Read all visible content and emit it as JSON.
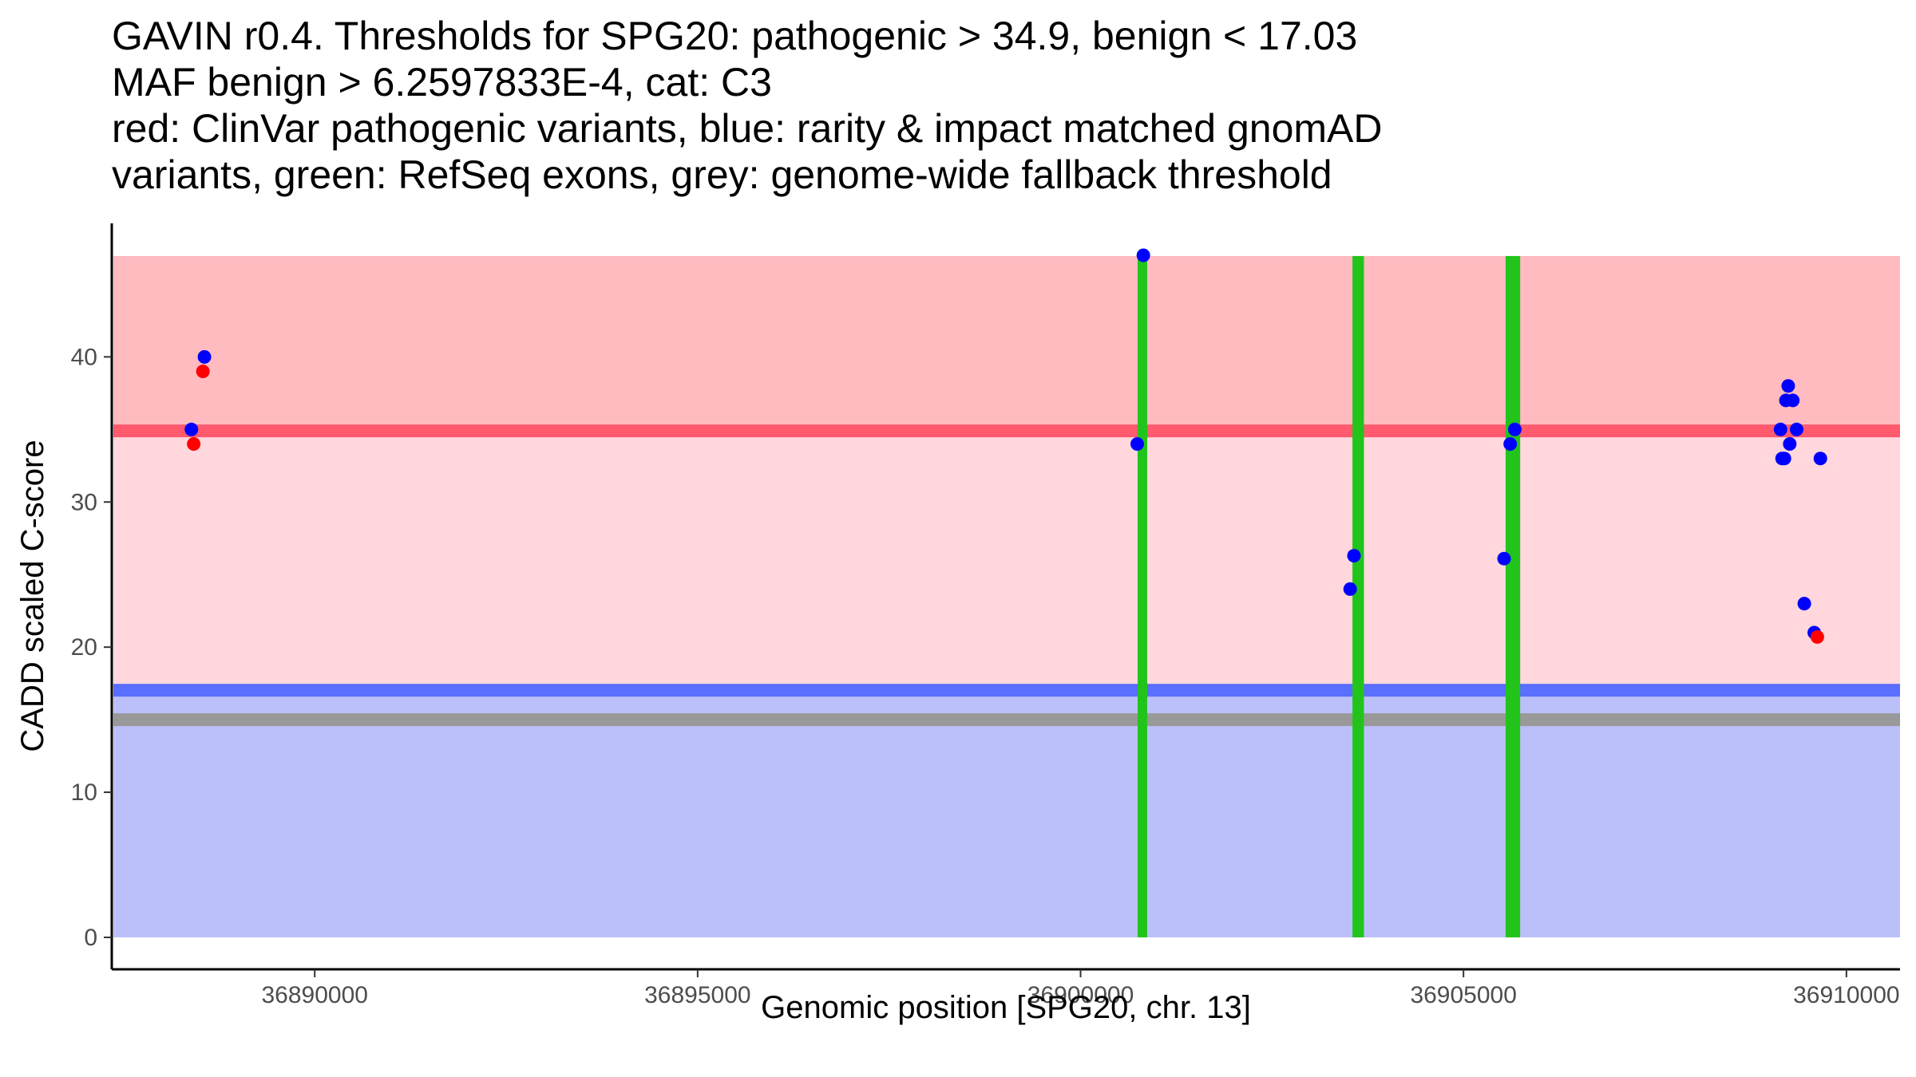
{
  "chart_data": {
    "type": "scatter",
    "title_lines": [
      "GAVIN r0.4. Thresholds for SPG20: pathogenic > 34.9, benign < 17.03",
      "MAF benign > 6.2597833E-4, cat: C3",
      "red: ClinVar pathogenic variants, blue: rarity & impact matched gnomAD",
      "variants, green: RefSeq exons, grey: genome-wide fallback threshold"
    ],
    "xlabel": "Genomic position [SPG20, chr. 13]",
    "ylabel": "CADD scaled C-score",
    "xlim": [
      36887350,
      36910700
    ],
    "ylim": [
      -2.2,
      49.2
    ],
    "x_ticks": [
      36890000,
      36895000,
      36900000,
      36905000,
      36910000
    ],
    "y_ticks": [
      0,
      10,
      20,
      30,
      40
    ],
    "regions": [
      {
        "name": "pathogenic-zone",
        "y0": 34.9,
        "y1": 46.95,
        "color": "#ffbbc0"
      },
      {
        "name": "intermediate-zone",
        "y0": 17.03,
        "y1": 34.9,
        "color": "#ffd7dd"
      },
      {
        "name": "benign-zone",
        "y0": 0.0,
        "y1": 17.03,
        "color": "#bbc0fa"
      }
    ],
    "threshold_lines": [
      {
        "name": "pathogenic-threshold",
        "y": 34.9,
        "color": "#ff5a6e"
      },
      {
        "name": "benign-threshold",
        "y": 17.03,
        "color": "#5a6eff"
      },
      {
        "name": "fallback-threshold",
        "y": 15.0,
        "color": "#999999"
      }
    ],
    "exons": [
      {
        "start": 36900745,
        "end": 36900855
      },
      {
        "start": 36903550,
        "end": 36903700
      },
      {
        "start": 36905550,
        "end": 36905740
      }
    ],
    "exon_color": "#22c41c",
    "series": [
      {
        "name": "ClinVar pathogenic",
        "color": "#ff0000",
        "points": [
          {
            "x": 36888420,
            "y": 34.0
          },
          {
            "x": 36888540,
            "y": 39.0
          },
          {
            "x": 36909620,
            "y": 20.7
          }
        ]
      },
      {
        "name": "gnomAD matched",
        "color": "#0000ff",
        "points": [
          {
            "x": 36888390,
            "y": 35.0
          },
          {
            "x": 36888560,
            "y": 40.0
          },
          {
            "x": 36900740,
            "y": 34.0
          },
          {
            "x": 36900820,
            "y": 47.0
          },
          {
            "x": 36903520,
            "y": 24.0
          },
          {
            "x": 36903570,
            "y": 26.3
          },
          {
            "x": 36905530,
            "y": 26.1
          },
          {
            "x": 36905610,
            "y": 34.0
          },
          {
            "x": 36905670,
            "y": 35.0
          },
          {
            "x": 36909140,
            "y": 35.0
          },
          {
            "x": 36909160,
            "y": 33.0
          },
          {
            "x": 36909190,
            "y": 33.0
          },
          {
            "x": 36909210,
            "y": 37.0
          },
          {
            "x": 36909240,
            "y": 38.0
          },
          {
            "x": 36909260,
            "y": 34.0
          },
          {
            "x": 36909300,
            "y": 37.0
          },
          {
            "x": 36909350,
            "y": 35.0
          },
          {
            "x": 36909450,
            "y": 23.0
          },
          {
            "x": 36909580,
            "y": 21.0
          },
          {
            "x": 36909660,
            "y": 33.0
          }
        ]
      }
    ]
  }
}
